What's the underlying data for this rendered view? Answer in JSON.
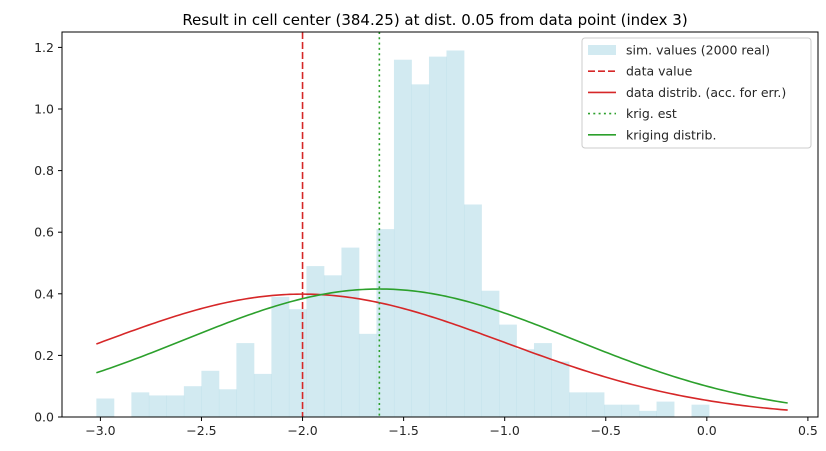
{
  "chart_data": {
    "type": "bar",
    "title": "Result in cell center (384.25) at dist. 0.05 from data point (index 3)",
    "xlabel": "",
    "ylabel": "",
    "xlim": [
      -3.19,
      0.55
    ],
    "ylim": [
      0,
      1.25
    ],
    "xticks": [
      -3.0,
      -2.5,
      -2.0,
      -1.5,
      -1.0,
      -0.5,
      0.0,
      0.5
    ],
    "xtick_labels": [
      "−3.0",
      "−2.5",
      "−2.0",
      "−1.5",
      "−1.0",
      "−0.5",
      "0.0",
      "0.5"
    ],
    "yticks": [
      0.0,
      0.2,
      0.4,
      0.6,
      0.8,
      1.0,
      1.2
    ],
    "ytick_labels": [
      "0.0",
      "0.2",
      "0.4",
      "0.6",
      "0.8",
      "1.0",
      "1.2"
    ],
    "grid": false,
    "legend_position": "top-right",
    "histogram": {
      "name": "sim. values (2000 real)",
      "color": "#add8e6",
      "bin_start": -3.02,
      "bin_width": 0.0866,
      "values": [
        0.06,
        0.0,
        0.08,
        0.07,
        0.07,
        0.1,
        0.15,
        0.09,
        0.24,
        0.14,
        0.39,
        0.35,
        0.49,
        0.46,
        0.55,
        0.27,
        0.61,
        1.16,
        1.08,
        1.17,
        1.19,
        0.69,
        0.41,
        0.3,
        0.22,
        0.24,
        0.18,
        0.08,
        0.08,
        0.04,
        0.04,
        0.02,
        0.05,
        0.0,
        0.04
      ]
    },
    "lines": [
      {
        "name": "data value",
        "kind": "vline",
        "x": -2.0,
        "color": "#d62728",
        "dash": "dashed"
      },
      {
        "name": "data distrib. (acc. for err.)",
        "kind": "normal",
        "mean": -2.0,
        "sd": 1.0,
        "x_range": [
          -3.02,
          0.4
        ],
        "color": "#d62728",
        "dash": "solid"
      },
      {
        "name": "krig. est",
        "kind": "vline",
        "x": -1.62,
        "color": "#2ca02c",
        "dash": "dotted"
      },
      {
        "name": "kriging distrib.",
        "kind": "normal",
        "mean": -1.62,
        "sd": 0.96,
        "x_range": [
          -3.02,
          0.4
        ],
        "color": "#2ca02c",
        "dash": "solid"
      }
    ]
  }
}
